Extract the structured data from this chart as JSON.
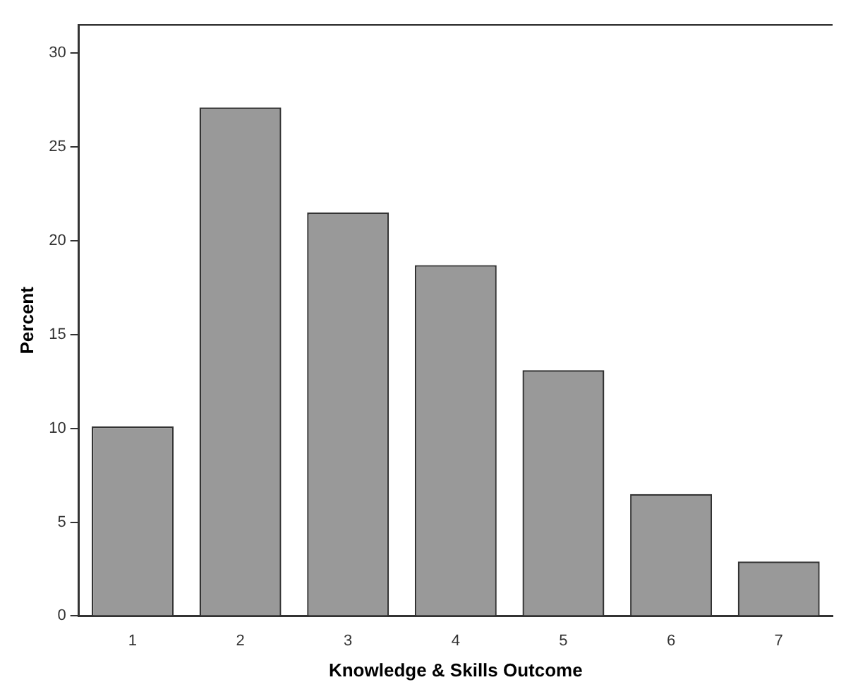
{
  "chart_data": {
    "type": "bar",
    "xlabel": "Knowledge & Skills Outcome",
    "ylabel": "Percent",
    "categories": [
      "1",
      "2",
      "3",
      "4",
      "5",
      "6",
      "7"
    ],
    "values": [
      10.1,
      27.1,
      21.5,
      18.7,
      13.1,
      6.5,
      2.9
    ],
    "color": "#999999",
    "ylim": [
      0,
      31.5
    ],
    "yticks": [
      0,
      5,
      10,
      15,
      20,
      25,
      30
    ],
    "grid": false,
    "legend": false
  }
}
